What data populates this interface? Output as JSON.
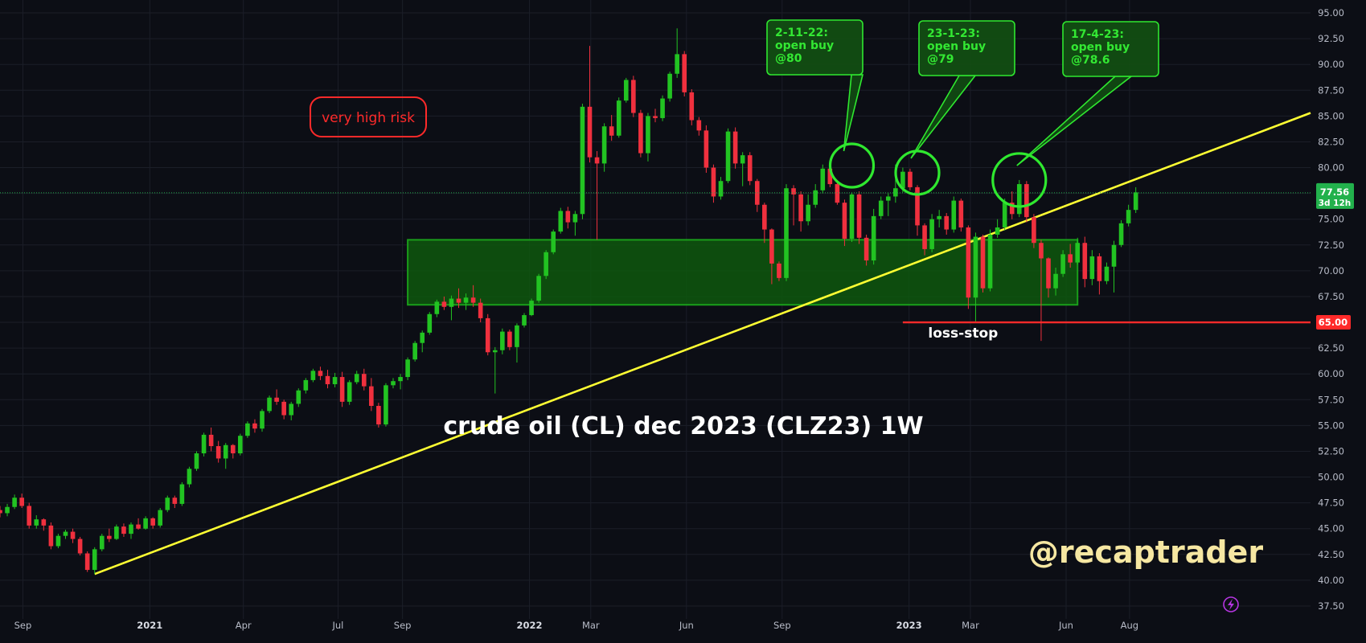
{
  "chart_data": {
    "type": "candlestick",
    "title": "crude oil (CL) dec 2023 (CLZ23) 1W",
    "watermark": "@recaptrader",
    "risk_label": "very high risk",
    "timeframe": "1W",
    "y_ticks": [
      "95.00",
      "92.50",
      "90.00",
      "87.50",
      "85.00",
      "82.50",
      "80.00",
      "77.50",
      "75.00",
      "72.50",
      "70.00",
      "67.50",
      "65.00",
      "62.50",
      "60.00",
      "57.50",
      "55.00",
      "52.50",
      "50.00",
      "47.50",
      "45.00",
      "42.50",
      "40.00",
      "37.50"
    ],
    "ylim": [
      36.25,
      96.25
    ],
    "x_ticks": [
      {
        "label": "Sep",
        "date": "2020-09-01",
        "bold": false
      },
      {
        "label": "2021",
        "date": "2021-01-01",
        "bold": true
      },
      {
        "label": "Apr",
        "date": "2021-04-01",
        "bold": false
      },
      {
        "label": "Jul",
        "date": "2021-07-01",
        "bold": false
      },
      {
        "label": "Sep",
        "date": "2021-09-01",
        "bold": false
      },
      {
        "label": "2022",
        "date": "2022-01-01",
        "bold": true
      },
      {
        "label": "Mar",
        "date": "2022-03-01",
        "bold": false
      },
      {
        "label": "Jun",
        "date": "2022-06-01",
        "bold": false
      },
      {
        "label": "Sep",
        "date": "2022-09-01",
        "bold": false
      },
      {
        "label": "2023",
        "date": "2023-01-01",
        "bold": true
      },
      {
        "label": "Mar",
        "date": "2023-03-01",
        "bold": false
      },
      {
        "label": "Jun",
        "date": "2023-06-01",
        "bold": false
      },
      {
        "label": "Aug",
        "date": "2023-08-01",
        "bold": false
      }
    ],
    "xlim": [
      "2020-08-10",
      "2024-01-22"
    ],
    "colors": {
      "up": "#22c322",
      "down": "#f0303e",
      "trend": "#ffff33",
      "zone_fill": "#0d5a0d",
      "zone_border": "#1a9e1a",
      "callout": "#2fe82f",
      "stop": "#ff2a2a",
      "last": "#22b14c"
    },
    "candles_start": "2020-08-10",
    "candles_interval_days": 7,
    "candles": [
      [
        46.8,
        47.2,
        46.1,
        46.5
      ],
      [
        46.5,
        47.4,
        46.2,
        47.1
      ],
      [
        47.1,
        48.3,
        46.9,
        48.0
      ],
      [
        48.0,
        48.4,
        47.0,
        47.2
      ],
      [
        47.2,
        47.5,
        45.0,
        45.3
      ],
      [
        45.3,
        46.3,
        45.0,
        45.9
      ],
      [
        45.9,
        46.0,
        44.8,
        45.3
      ],
      [
        45.3,
        45.6,
        43.0,
        43.3
      ],
      [
        43.3,
        44.5,
        43.1,
        44.3
      ],
      [
        44.3,
        44.9,
        44.0,
        44.7
      ],
      [
        44.7,
        45.0,
        43.6,
        44.0
      ],
      [
        44.0,
        44.2,
        42.4,
        42.6
      ],
      [
        42.6,
        42.8,
        40.8,
        41.0
      ],
      [
        41.0,
        43.2,
        40.6,
        43.0
      ],
      [
        43.0,
        44.5,
        42.8,
        44.3
      ],
      [
        44.3,
        45.0,
        43.7,
        44.0
      ],
      [
        44.0,
        45.4,
        43.9,
        45.2
      ],
      [
        45.2,
        45.5,
        44.2,
        44.5
      ],
      [
        44.5,
        45.6,
        44.0,
        45.4
      ],
      [
        45.4,
        46.0,
        44.9,
        45.0
      ],
      [
        45.0,
        46.2,
        44.9,
        46.0
      ],
      [
        46.0,
        46.1,
        45.0,
        45.3
      ],
      [
        45.3,
        47.0,
        45.1,
        46.8
      ],
      [
        46.8,
        48.2,
        46.6,
        48.0
      ],
      [
        48.0,
        48.2,
        47.0,
        47.4
      ],
      [
        47.4,
        49.5,
        47.2,
        49.3
      ],
      [
        49.3,
        51.0,
        49.0,
        50.8
      ],
      [
        50.8,
        52.5,
        50.6,
        52.3
      ],
      [
        52.3,
        54.3,
        52.0,
        54.1
      ],
      [
        54.1,
        54.8,
        52.5,
        53.0
      ],
      [
        53.0,
        53.5,
        51.4,
        51.8
      ],
      [
        51.8,
        53.3,
        50.8,
        53.1
      ],
      [
        53.1,
        53.2,
        51.8,
        52.3
      ],
      [
        52.3,
        54.2,
        52.1,
        54.0
      ],
      [
        54.0,
        55.4,
        53.8,
        55.2
      ],
      [
        55.2,
        55.6,
        54.3,
        54.7
      ],
      [
        54.7,
        56.6,
        54.4,
        56.4
      ],
      [
        56.4,
        57.9,
        56.2,
        57.7
      ],
      [
        57.7,
        58.5,
        57.0,
        57.3
      ],
      [
        57.3,
        57.5,
        55.6,
        56.0
      ],
      [
        56.0,
        57.3,
        55.5,
        57.1
      ],
      [
        57.1,
        58.6,
        56.8,
        58.4
      ],
      [
        58.4,
        59.6,
        58.1,
        59.4
      ],
      [
        59.4,
        60.5,
        59.2,
        60.3
      ],
      [
        60.3,
        60.7,
        59.4,
        59.8
      ],
      [
        59.8,
        60.4,
        58.6,
        59.0
      ],
      [
        59.0,
        60.1,
        58.7,
        59.7
      ],
      [
        59.7,
        60.2,
        56.8,
        57.3
      ],
      [
        57.3,
        59.4,
        57.0,
        59.2
      ],
      [
        59.2,
        60.3,
        59.0,
        60.0
      ],
      [
        60.0,
        60.5,
        58.4,
        58.8
      ],
      [
        58.8,
        59.6,
        56.4,
        56.9
      ],
      [
        56.9,
        57.2,
        54.8,
        55.1
      ],
      [
        55.1,
        59.1,
        54.9,
        58.9
      ],
      [
        58.9,
        59.6,
        58.6,
        59.3
      ],
      [
        59.3,
        60.0,
        58.5,
        59.7
      ],
      [
        59.7,
        61.6,
        59.4,
        61.4
      ],
      [
        61.4,
        63.2,
        61.2,
        63.0
      ],
      [
        63.0,
        64.2,
        62.1,
        64.0
      ],
      [
        64.0,
        66.0,
        63.8,
        65.8
      ],
      [
        65.8,
        67.2,
        65.5,
        67.0
      ],
      [
        67.0,
        67.5,
        66.2,
        66.5
      ],
      [
        66.5,
        67.6,
        65.2,
        67.3
      ],
      [
        67.3,
        68.3,
        66.4,
        66.9
      ],
      [
        66.9,
        67.8,
        66.2,
        67.4
      ],
      [
        67.4,
        68.6,
        66.5,
        66.9
      ],
      [
        66.9,
        67.3,
        65.0,
        65.4
      ],
      [
        65.4,
        65.8,
        61.8,
        62.1
      ],
      [
        62.1,
        62.6,
        58.1,
        62.3
      ],
      [
        62.3,
        64.4,
        61.9,
        64.1
      ],
      [
        64.1,
        64.3,
        62.3,
        62.6
      ],
      [
        62.6,
        64.9,
        61.1,
        64.7
      ],
      [
        64.7,
        65.9,
        64.5,
        65.7
      ],
      [
        65.7,
        67.3,
        65.6,
        67.1
      ],
      [
        67.1,
        69.7,
        66.9,
        69.5
      ],
      [
        69.5,
        72.0,
        69.2,
        71.8
      ],
      [
        71.8,
        74.0,
        71.6,
        73.8
      ],
      [
        73.8,
        76.1,
        73.6,
        75.8
      ],
      [
        75.8,
        76.2,
        74.1,
        74.7
      ],
      [
        74.7,
        75.8,
        73.4,
        75.5
      ],
      [
        75.5,
        86.2,
        75.0,
        85.9
      ],
      [
        85.9,
        91.8,
        80.5,
        81.0
      ],
      [
        81.0,
        81.6,
        73.0,
        80.4
      ],
      [
        80.4,
        84.3,
        79.6,
        84.0
      ],
      [
        84.0,
        85.1,
        82.6,
        83.1
      ],
      [
        83.1,
        86.8,
        82.9,
        86.5
      ],
      [
        86.5,
        88.7,
        86.3,
        88.5
      ],
      [
        88.5,
        88.9,
        84.9,
        85.3
      ],
      [
        85.3,
        85.6,
        81.0,
        81.4
      ],
      [
        81.4,
        85.3,
        80.6,
        85.0
      ],
      [
        85.0,
        85.7,
        84.4,
        84.8
      ],
      [
        84.8,
        87.0,
        84.5,
        86.7
      ],
      [
        86.7,
        89.3,
        86.4,
        89.1
      ],
      [
        89.1,
        93.5,
        88.7,
        91.0
      ],
      [
        91.0,
        91.3,
        86.9,
        87.3
      ],
      [
        87.3,
        87.6,
        84.1,
        84.6
      ],
      [
        84.6,
        84.9,
        83.1,
        83.6
      ],
      [
        83.6,
        84.1,
        79.5,
        80.0
      ],
      [
        80.0,
        80.3,
        76.6,
        77.2
      ],
      [
        77.2,
        79.1,
        76.9,
        78.7
      ],
      [
        78.7,
        83.8,
        78.5,
        83.5
      ],
      [
        83.5,
        83.9,
        79.9,
        80.4
      ],
      [
        80.4,
        81.5,
        78.2,
        81.2
      ],
      [
        81.2,
        81.5,
        78.3,
        78.7
      ],
      [
        78.7,
        78.9,
        75.7,
        76.4
      ],
      [
        76.4,
        76.6,
        72.7,
        74.0
      ],
      [
        74.0,
        74.1,
        68.7,
        70.7
      ],
      [
        70.7,
        70.9,
        69.0,
        69.3
      ],
      [
        69.3,
        78.4,
        69.0,
        78.0
      ],
      [
        78.0,
        78.3,
        74.4,
        77.4
      ],
      [
        77.4,
        77.7,
        73.8,
        74.8
      ],
      [
        74.8,
        77.4,
        74.4,
        76.4
      ],
      [
        76.4,
        78.4,
        76.1,
        77.8
      ],
      [
        77.8,
        80.3,
        77.5,
        79.9
      ],
      [
        79.9,
        80.2,
        78.1,
        78.4
      ],
      [
        78.4,
        78.7,
        76.4,
        76.6
      ],
      [
        76.6,
        76.9,
        72.4,
        73.1
      ],
      [
        73.1,
        77.6,
        72.8,
        77.4
      ],
      [
        77.4,
        77.7,
        72.6,
        73.2
      ],
      [
        73.2,
        73.5,
        70.5,
        71.0
      ],
      [
        71.0,
        76.0,
        70.6,
        75.3
      ],
      [
        75.3,
        77.2,
        75.0,
        76.8
      ],
      [
        76.8,
        77.5,
        75.3,
        77.2
      ],
      [
        77.2,
        80.3,
        76.6,
        78.0
      ],
      [
        78.0,
        80.0,
        77.6,
        79.6
      ],
      [
        79.6,
        79.9,
        77.8,
        78.1
      ],
      [
        78.1,
        78.3,
        73.4,
        74.4
      ],
      [
        74.4,
        74.6,
        71.5,
        72.1
      ],
      [
        72.1,
        75.5,
        71.8,
        75.0
      ],
      [
        75.0,
        75.9,
        74.2,
        75.3
      ],
      [
        75.3,
        75.6,
        73.5,
        74.0
      ],
      [
        74.0,
        77.2,
        73.7,
        76.8
      ],
      [
        76.8,
        77.0,
        73.8,
        74.2
      ],
      [
        74.2,
        74.4,
        66.3,
        67.4
      ],
      [
        67.4,
        73.7,
        65.1,
        73.3
      ],
      [
        73.3,
        73.5,
        67.9,
        68.3
      ],
      [
        68.3,
        74.0,
        68.0,
        73.5
      ],
      [
        73.5,
        75.0,
        73.2,
        74.2
      ],
      [
        74.2,
        77.0,
        73.9,
        76.6
      ],
      [
        76.6,
        77.7,
        75.0,
        75.5
      ],
      [
        75.5,
        78.8,
        75.2,
        78.4
      ],
      [
        78.4,
        78.7,
        74.7,
        75.2
      ],
      [
        75.2,
        75.5,
        72.2,
        72.7
      ],
      [
        72.7,
        73.0,
        63.2,
        71.2
      ],
      [
        71.2,
        71.3,
        67.4,
        68.3
      ],
      [
        68.3,
        70.3,
        67.6,
        69.7
      ],
      [
        69.7,
        72.0,
        69.4,
        71.6
      ],
      [
        71.6,
        72.6,
        70.3,
        70.8
      ],
      [
        70.8,
        73.2,
        70.6,
        72.7
      ],
      [
        72.7,
        73.3,
        68.4,
        69.2
      ],
      [
        69.2,
        72.0,
        68.6,
        71.4
      ],
      [
        71.4,
        71.7,
        67.7,
        69.0
      ],
      [
        69.0,
        70.8,
        68.7,
        70.4
      ],
      [
        70.4,
        72.9,
        67.9,
        72.5
      ],
      [
        72.5,
        74.9,
        72.3,
        74.6
      ],
      [
        74.6,
        76.4,
        74.3,
        75.9
      ],
      [
        75.9,
        78.1,
        75.6,
        77.6
      ]
    ],
    "trendline": {
      "start": {
        "date": "2020-11-09",
        "price": 40.6
      },
      "end": {
        "date": "2024-01-22",
        "price": 85.3
      }
    },
    "zone": {
      "start": "2021-09-06",
      "end": "2023-06-12",
      "top": 73.0,
      "bottom": 66.7
    },
    "stop": {
      "price": 65.0,
      "label": "loss-stop",
      "price_label": "65.00",
      "start": "2022-12-26"
    },
    "last_price": {
      "price": 77.56,
      "price_label": "77.56",
      "countdown": "3d 12h"
    },
    "callouts": [
      {
        "lines": [
          "2-11-22:",
          "open buy",
          "@80"
        ],
        "date": "2022-11-07",
        "price": 80.2
      },
      {
        "lines": [
          "23-1-23:",
          "open buy",
          "@79"
        ],
        "date": "2023-01-09",
        "price": 79.5
      },
      {
        "lines": [
          "17-4-23:",
          "open buy",
          "@78.6"
        ],
        "date": "2023-04-17",
        "price": 78.8
      }
    ],
    "icons": {
      "flash": "lightning-bolt-icon"
    }
  }
}
